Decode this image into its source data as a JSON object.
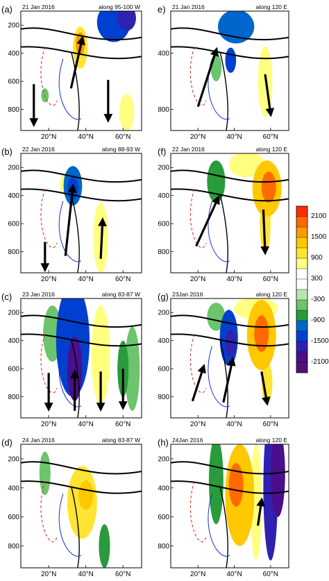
{
  "chart_data": [
    {
      "type": "heatmap",
      "panel_label": "(a)",
      "date": "21 Jan 2016",
      "section": "along 95-100 W",
      "ylim": [
        950,
        100
      ],
      "yticks": [
        200,
        400,
        600,
        800
      ],
      "xticks": [
        "20°N",
        "40°N",
        "60°N"
      ],
      "xlim": [
        5,
        70
      ],
      "blobs": [
        {
          "x": 55,
          "p": 180,
          "rx": 9,
          "rp": 140,
          "v": -1400
        },
        {
          "x": 62,
          "p": 150,
          "rx": 5,
          "rp": 90,
          "v": -1700
        },
        {
          "x": 37,
          "p": 360,
          "rx": 4,
          "rp": 150,
          "v": 900
        },
        {
          "x": 37,
          "p": 330,
          "rx": 2.5,
          "rp": 80,
          "v": 1500
        },
        {
          "x": 62,
          "p": 820,
          "rx": 4,
          "rp": 130,
          "v": 600
        },
        {
          "x": 18,
          "p": 700,
          "rx": 2,
          "rp": 50,
          "v": -500
        }
      ],
      "arrows": [
        [
          32,
          650,
          38,
          300
        ],
        [
          12,
          620,
          12,
          900
        ],
        [
          52,
          590,
          52,
          870
        ]
      ]
    },
    {
      "type": "heatmap",
      "panel_label": "(b)",
      "date": "22 Jan 2016",
      "section": "along 88-93 W",
      "ylim": [
        950,
        100
      ],
      "yticks": [
        200,
        400,
        600,
        800
      ],
      "xticks": [
        "20°N",
        "40°N",
        "60°N"
      ],
      "xlim": [
        5,
        70
      ],
      "blobs": [
        {
          "x": 33,
          "p": 330,
          "rx": 5,
          "rp": 140,
          "v": -1000
        },
        {
          "x": 33,
          "p": 350,
          "rx": 3,
          "rp": 80,
          "v": -1500
        },
        {
          "x": 29,
          "p": 320,
          "rx": 3,
          "rp": 80,
          "v": 600
        },
        {
          "x": 48,
          "p": 700,
          "rx": 4,
          "rp": 250,
          "v": 600
        },
        {
          "x": 34,
          "p": 650,
          "rx": 3,
          "rp": 250,
          "v": 500
        }
      ],
      "arrows": [
        [
          29,
          830,
          33,
          340
        ],
        [
          48,
          850,
          49,
          580
        ],
        [
          18,
          730,
          18,
          920
        ]
      ]
    },
    {
      "type": "heatmap",
      "panel_label": "(c)",
      "date": "23 Jan 2016",
      "section": "along 83-87 W",
      "ylim": [
        950,
        100
      ],
      "yticks": [
        200,
        400,
        600,
        800
      ],
      "xticks": [
        "20°N",
        "40°N",
        "60°N"
      ],
      "xlim": [
        5,
        70
      ],
      "blobs": [
        {
          "x": 33,
          "p": 400,
          "rx": 9,
          "rp": 400,
          "v": -1400
        },
        {
          "x": 34,
          "p": 600,
          "rx": 4,
          "rp": 230,
          "v": -2000
        },
        {
          "x": 22,
          "p": 350,
          "rx": 5,
          "rp": 200,
          "v": -500
        },
        {
          "x": 48,
          "p": 500,
          "rx": 5,
          "rp": 350,
          "v": 600
        },
        {
          "x": 48,
          "p": 200,
          "rx": 5,
          "rp": 100,
          "v": 500
        },
        {
          "x": 60,
          "p": 600,
          "rx": 3,
          "rp": 200,
          "v": -900
        },
        {
          "x": 65,
          "p": 600,
          "rx": 4,
          "rp": 300,
          "v": -500
        }
      ],
      "arrows": [
        [
          34,
          900,
          34,
          630
        ],
        [
          20,
          630,
          20,
          880
        ],
        [
          48,
          620,
          48,
          880
        ],
        [
          60,
          600,
          60,
          870
        ]
      ]
    },
    {
      "type": "heatmap",
      "panel_label": "(d)",
      "date": "24 Jan 2016",
      "section": "along 83-87 W",
      "ylim": [
        950,
        100
      ],
      "yticks": [
        200,
        400,
        600,
        800
      ],
      "xticks": [
        "20°N",
        "40°N",
        "60°N"
      ],
      "xlim": [
        5,
        70
      ],
      "blobs": [
        {
          "x": 38,
          "p": 500,
          "rx": 8,
          "rp": 250,
          "v": 900
        },
        {
          "x": 40,
          "p": 450,
          "rx": 4,
          "rp": 100,
          "v": 1300
        },
        {
          "x": 50,
          "p": 800,
          "rx": 3,
          "rp": 150,
          "v": -900
        },
        {
          "x": 18,
          "p": 300,
          "rx": 3,
          "rp": 150,
          "v": -600
        },
        {
          "x": 47,
          "p": 100,
          "rx": 10,
          "rp": 60,
          "v": 500
        }
      ],
      "arrows": []
    },
    {
      "type": "heatmap",
      "panel_label": "e)",
      "date": "21 Jan 2016",
      "section": "along 120 E",
      "ylim": [
        950,
        100
      ],
      "yticks": [
        400,
        800
      ],
      "xticks": [
        "20°N",
        "40°N",
        "60°N"
      ],
      "xlim": [
        5,
        70
      ],
      "blobs": [
        {
          "x": 41,
          "p": 210,
          "rx": 10,
          "rp": 120,
          "v": -1200
        },
        {
          "x": 38,
          "p": 450,
          "rx": 3,
          "rp": 90,
          "v": -1500
        },
        {
          "x": 57,
          "p": 600,
          "rx": 4,
          "rp": 250,
          "v": 600
        },
        {
          "x": 30,
          "p": 500,
          "rx": 3,
          "rp": 100,
          "v": -400
        }
      ],
      "arrows": [
        [
          20,
          780,
          30,
          380
        ],
        [
          57,
          550,
          60,
          830
        ]
      ]
    },
    {
      "type": "heatmap",
      "panel_label": "(f)",
      "date": "22 Jan 2016",
      "section": "along 120 E",
      "ylim": [
        950,
        100
      ],
      "yticks": [
        200,
        400,
        600,
        800
      ],
      "xticks": [
        "20°N",
        "40°N",
        "60°N"
      ],
      "xlim": [
        5,
        70
      ],
      "blobs": [
        {
          "x": 58,
          "p": 350,
          "rx": 8,
          "rp": 200,
          "v": 1300
        },
        {
          "x": 59,
          "p": 340,
          "rx": 4,
          "rp": 110,
          "v": 1900
        },
        {
          "x": 30,
          "p": 300,
          "rx": 5,
          "rp": 150,
          "v": -900
        },
        {
          "x": 57,
          "p": 600,
          "rx": 3,
          "rp": 200,
          "v": 900
        },
        {
          "x": 47,
          "p": 180,
          "rx": 10,
          "rp": 90,
          "v": 600
        }
      ],
      "arrows": [
        [
          19,
          760,
          31,
          420
        ],
        [
          56,
          500,
          57,
          800
        ]
      ]
    },
    {
      "type": "heatmap",
      "panel_label": "(g)",
      "date": "23Jan 2016",
      "section": "along 120 E",
      "ylim": [
        950,
        100
      ],
      "yticks": [
        200,
        400,
        600,
        800
      ],
      "xticks": [
        "20°N",
        "40°N",
        "60°N"
      ],
      "xlim": [
        5,
        70
      ],
      "blobs": [
        {
          "x": 37,
          "p": 380,
          "rx": 5,
          "rp": 200,
          "v": -1300
        },
        {
          "x": 38,
          "p": 420,
          "rx": 3,
          "rp": 100,
          "v": -1800
        },
        {
          "x": 30,
          "p": 230,
          "rx": 5,
          "rp": 100,
          "v": -500
        },
        {
          "x": 55,
          "p": 360,
          "rx": 8,
          "rp": 250,
          "v": 1200
        },
        {
          "x": 55,
          "p": 350,
          "rx": 4,
          "rp": 130,
          "v": 1800
        },
        {
          "x": 52,
          "p": 170,
          "rx": 12,
          "rp": 80,
          "v": 600
        },
        {
          "x": 58,
          "p": 700,
          "rx": 3,
          "rp": 150,
          "v": 900
        }
      ],
      "arrows": [
        [
          17,
          830,
          23,
          590
        ],
        [
          34,
          840,
          39,
          540
        ],
        [
          55,
          620,
          58,
          840
        ]
      ]
    },
    {
      "type": "heatmap",
      "panel_label": "(h)",
      "date": "24Jan 2016",
      "section": "along 120 E",
      "ylim": [
        950,
        100
      ],
      "yticks": [
        200,
        400,
        600,
        800
      ],
      "xticks": [
        "20°N",
        "40°N",
        "60°N"
      ],
      "xlim": [
        5,
        70
      ],
      "blobs": [
        {
          "x": 43,
          "p": 450,
          "rx": 8,
          "rp": 350,
          "v": 1300
        },
        {
          "x": 41,
          "p": 380,
          "rx": 4,
          "rp": 150,
          "v": 2000
        },
        {
          "x": 30,
          "p": 350,
          "rx": 4,
          "rp": 300,
          "v": -900
        },
        {
          "x": 60,
          "p": 400,
          "rx": 4,
          "rp": 500,
          "v": -1700
        },
        {
          "x": 64,
          "p": 300,
          "rx": 4,
          "rp": 300,
          "v": -2100
        },
        {
          "x": 52,
          "p": 500,
          "rx": 3,
          "rp": 400,
          "v": 700
        }
      ],
      "arrows": [
        [
          53,
          660,
          55,
          490
        ]
      ]
    }
  ],
  "colorbar": {
    "labels": [
      "2100",
      "1500",
      "900",
      "300",
      "-300",
      "-900",
      "-1500",
      "-2100"
    ],
    "levels": [
      2100,
      1800,
      1500,
      1200,
      900,
      600,
      300,
      0,
      -300,
      -600,
      -900,
      -1200,
      -1500,
      -1800,
      -2100
    ],
    "colors": [
      "#ff2c00",
      "#ff6a00",
      "#ff9a00",
      "#ffc800",
      "#ffe433",
      "#ffff80",
      "#ffffff",
      "#ffffff",
      "#b8e6b0",
      "#6cc46c",
      "#2a9a3c",
      "#0066cc",
      "#0040d0",
      "#3022b0",
      "#4a0f8c",
      "#540f7a"
    ]
  }
}
